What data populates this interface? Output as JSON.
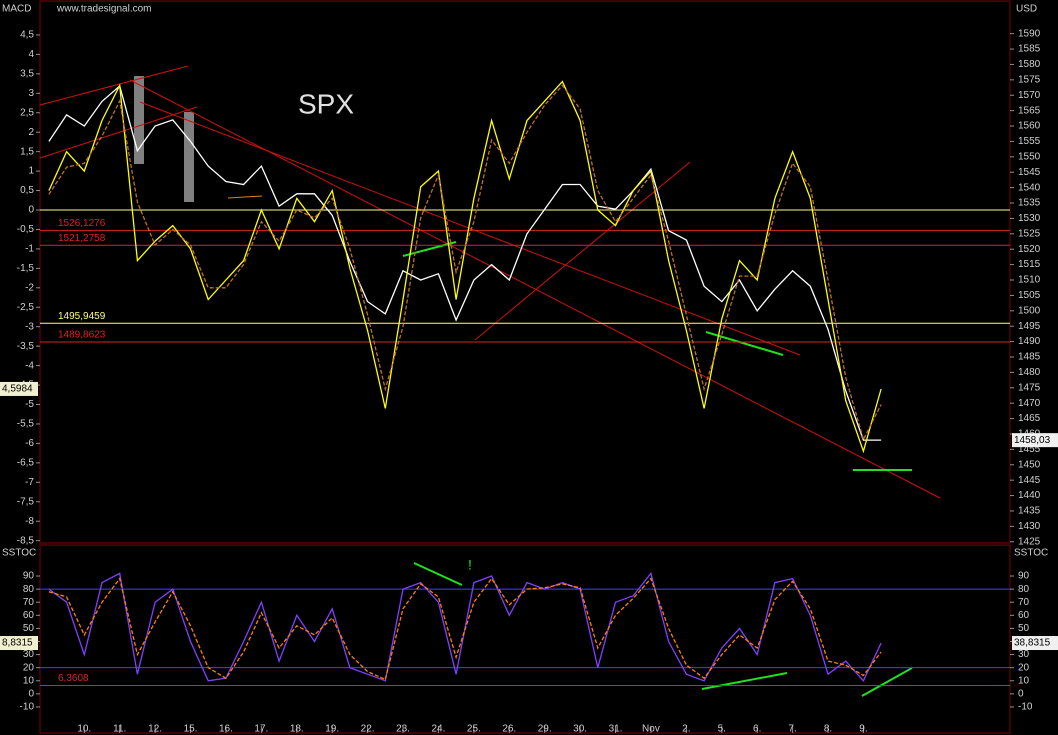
{
  "chart_data": [
    {
      "type": "line",
      "title": "SPX",
      "source": "www.tradesignal.com",
      "y_label": "MACD",
      "y2_label": "USD",
      "ylim": [
        -8.56,
        5.27
      ],
      "yticks": [
        {
          "value": 4.5,
          "label": "4,5"
        },
        4,
        {
          "value": 3.5,
          "label": "3,5"
        },
        3,
        {
          "value": 2.5,
          "label": "2,5"
        },
        2,
        {
          "value": 1.5,
          "label": "1,5"
        },
        1,
        {
          "value": 0.5,
          "label": "0,5"
        },
        0,
        {
          "value": -0.5,
          "label": "-0,5"
        },
        -1,
        {
          "value": -1.5,
          "label": "-1,5"
        },
        -2,
        {
          "value": -2.5,
          "label": "-2,5"
        },
        -3,
        {
          "value": -3.5,
          "label": "-3,5"
        },
        -4,
        {
          "value": -4.5,
          "label": "-4,5"
        },
        -5,
        {
          "value": -5.5,
          "label": "-5,5"
        },
        -6,
        {
          "value": -6.5,
          "label": "-6,5"
        },
        -7,
        {
          "value": -7.5,
          "label": "-7,5"
        },
        -8,
        {
          "value": -8.5,
          "label": "-8,5"
        }
      ],
      "y2lim": [
        1424.6,
        1599.3
      ],
      "y2ticks": [
        1425,
        1430,
        1435,
        1440,
        1445,
        1450,
        1455,
        1460,
        1465,
        1470,
        1475,
        1480,
        1485,
        1490,
        1495,
        1500,
        1505,
        1510,
        1515,
        1520,
        1525,
        1530,
        1535,
        1540,
        1545,
        1550,
        1555,
        1560,
        1565,
        1570,
        1575,
        1580,
        1585,
        1590
      ],
      "levels": [
        {
          "value": 0,
          "color": "#ffff80"
        },
        {
          "value": 1526.1276,
          "label": "1526,1276",
          "color": "#e02020",
          "axis": "y2"
        },
        {
          "value": 1521.2758,
          "label": "1521,2758",
          "color": "#e02020",
          "axis": "y2"
        },
        {
          "value": 1495.9459,
          "label": "1495,9459",
          "color": "#ffff80",
          "axis": "y2"
        },
        {
          "value": 1489.8623,
          "label": "1489,8623",
          "color": "#e02020",
          "axis": "y2"
        }
      ],
      "last_value_labels": {
        "y": "4,5984",
        "y2": "1458,03"
      },
      "series": [
        {
          "color": "#ffffff",
          "axis": "y2",
          "values": [
            1555,
            1563.6,
            1560,
            1568,
            1573,
            1552,
            1560,
            1562,
            1555,
            1547,
            1542,
            1541,
            1547,
            1534,
            1538,
            1538,
            1531,
            1516,
            1503,
            1499,
            1513,
            1510,
            1512,
            1497,
            1510,
            1515,
            1510,
            1525,
            1533,
            1541,
            1541,
            1534,
            1533,
            1539,
            1546,
            1526,
            1523,
            1508,
            1503,
            1510,
            1500,
            1507,
            1513,
            1508,
            1494,
            1474,
            1458,
            1458
          ]
        },
        {
          "color": "#ffff00",
          "values": [
            0.5,
            1.5,
            1.0,
            2.3,
            3.2,
            -1.3,
            -0.8,
            -0.4,
            -1.0,
            -2.3,
            -1.8,
            -1.3,
            0,
            -1.0,
            0.3,
            -0.3,
            0.5,
            -1.5,
            -3.1,
            -5.1,
            -2.3,
            0.6,
            1.0,
            -2.3,
            0.3,
            2.3,
            0.8,
            2.3,
            2.8,
            3.3,
            2.3,
            0,
            -0.4,
            0.5,
            1.0,
            -1.3,
            -3.1,
            -5.1,
            -2.8,
            -1.3,
            -1.8,
            0.3,
            1.5,
            0.3,
            -2.3,
            -4.9,
            -6.2,
            -4.6
          ]
        },
        {
          "color": "#c07020",
          "values": [
            0.4,
            1.1,
            1.2,
            1.9,
            2.8,
            0.2,
            -0.9,
            -0.5,
            -0.9,
            -2.0,
            -2.0,
            -1.4,
            -0.3,
            -0.8,
            0,
            -0.2,
            0.3,
            -1.0,
            -2.7,
            -4.6,
            -3.0,
            -0.2,
            0.9,
            -1.6,
            -0.3,
            1.8,
            1.2,
            2.0,
            2.7,
            3.2,
            2.6,
            0.5,
            -0.3,
            0.3,
            0.9,
            -0.8,
            -2.7,
            -4.6,
            -3.2,
            -1.7,
            -1.7,
            -0.1,
            1.2,
            0.6,
            -1.8,
            -4.3,
            -5.9,
            -5.0
          ]
        }
      ]
    },
    {
      "type": "line",
      "y_label": "SSTOC",
      "y2_label": "SSTOC",
      "annotation": "!",
      "ylim": [
        -27.6,
        113.7
      ],
      "yticks": [
        -10,
        0,
        10,
        20,
        30,
        40,
        50,
        60,
        70,
        80,
        90
      ],
      "levels": [
        {
          "value": 80,
          "color": "#4040ff"
        },
        {
          "value": 20,
          "color": "#4040ff"
        },
        {
          "value": 6.3608,
          "label": "6,3608",
          "color": "#e02020"
        }
      ],
      "last_value_labels": {
        "y": "8,8315",
        "y2": "38,8315"
      },
      "categories": [
        null,
        null,
        "10.",
        null,
        "11.",
        null,
        "12.",
        null,
        "15.",
        null,
        "16.",
        null,
        "17.",
        null,
        "18.",
        null,
        "19.",
        null,
        "22.",
        null,
        "23.",
        null,
        "24.",
        null,
        "25.",
        null,
        "26.",
        null,
        "29.",
        null,
        "30.",
        null,
        "31.",
        null,
        "Nov",
        null,
        "2.",
        null,
        "5.",
        null,
        "6.",
        null,
        "7.",
        null,
        "8.",
        null,
        "9.",
        null
      ],
      "series": [
        {
          "color": "#8040ff",
          "values": [
            80,
            70,
            30,
            85,
            92,
            15,
            70,
            80,
            40,
            10,
            12,
            40,
            70,
            25,
            60,
            40,
            65,
            20,
            15,
            10,
            80,
            85,
            70,
            15,
            85,
            90,
            60,
            85,
            80,
            85,
            80,
            20,
            70,
            75,
            92,
            40,
            15,
            10,
            35,
            50,
            30,
            85,
            88,
            60,
            15,
            25,
            10,
            38.8315
          ]
        },
        {
          "color": "#ff8000",
          "values": [
            78,
            74,
            45,
            70,
            88,
            30,
            55,
            78,
            52,
            20,
            12,
            32,
            62,
            35,
            52,
            45,
            58,
            30,
            17,
            11,
            65,
            84,
            74,
            28,
            70,
            88,
            68,
            80,
            81,
            84,
            81,
            35,
            60,
            73,
            88,
            50,
            22,
            12,
            30,
            45,
            35,
            72,
            86,
            65,
            25,
            22,
            14,
            32
          ]
        }
      ]
    }
  ]
}
